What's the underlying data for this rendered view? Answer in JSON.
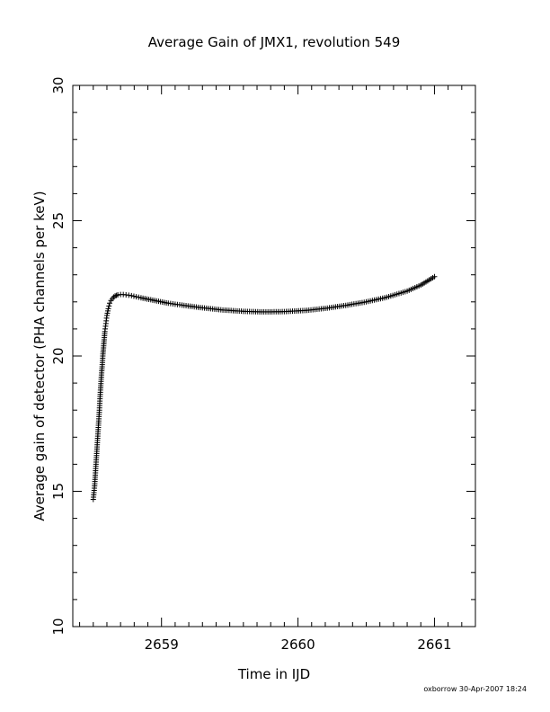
{
  "chart_data": {
    "type": "scatter",
    "title": "Average Gain of JMX1, revolution 549",
    "xlabel": "Time in IJD",
    "ylabel": "Average gain of detector (PHA channels per keV)",
    "xlim": [
      2658.35,
      2661.3
    ],
    "ylim": [
      10,
      30
    ],
    "x_ticks": [
      2659,
      2660,
      2661
    ],
    "x_tick_labels": [
      "2659",
      "2660",
      "2661"
    ],
    "y_ticks": [
      10,
      15,
      20,
      25,
      30
    ],
    "y_tick_labels": [
      "10",
      "15",
      "20",
      "25",
      "30"
    ],
    "grid": false,
    "marker": "plus",
    "series": [
      {
        "points": [
          [
            2658.5,
            14.7
          ],
          [
            2658.51,
            15.2
          ],
          [
            2658.515,
            15.6
          ],
          [
            2658.52,
            16.0
          ],
          [
            2658.525,
            16.4
          ],
          [
            2658.53,
            16.8
          ],
          [
            2658.535,
            17.2
          ],
          [
            2658.54,
            17.6
          ],
          [
            2658.545,
            18.0
          ],
          [
            2658.55,
            18.5
          ],
          [
            2658.555,
            18.9
          ],
          [
            2658.56,
            19.3
          ],
          [
            2658.565,
            19.6
          ],
          [
            2658.57,
            20.0
          ],
          [
            2658.575,
            20.3
          ],
          [
            2658.58,
            20.6
          ],
          [
            2658.585,
            20.9
          ],
          [
            2658.59,
            21.1
          ],
          [
            2658.595,
            21.3
          ],
          [
            2658.6,
            21.5
          ],
          [
            2658.61,
            21.75
          ],
          [
            2658.62,
            21.95
          ],
          [
            2658.63,
            22.05
          ],
          [
            2658.64,
            22.12
          ],
          [
            2658.65,
            22.18
          ],
          [
            2658.66,
            22.22
          ],
          [
            2658.67,
            22.24
          ],
          [
            2658.68,
            22.26
          ],
          [
            2658.7,
            22.27
          ],
          [
            2658.72,
            22.27
          ],
          [
            2658.74,
            22.26
          ],
          [
            2658.78,
            22.23
          ],
          [
            2658.85,
            22.15
          ],
          [
            2658.95,
            22.05
          ],
          [
            2659.05,
            21.95
          ],
          [
            2659.15,
            21.88
          ],
          [
            2659.3,
            21.78
          ],
          [
            2659.45,
            21.7
          ],
          [
            2659.6,
            21.65
          ],
          [
            2659.75,
            21.63
          ],
          [
            2659.9,
            21.64
          ],
          [
            2660.05,
            21.68
          ],
          [
            2660.2,
            21.76
          ],
          [
            2660.35,
            21.87
          ],
          [
            2660.5,
            22.0
          ],
          [
            2660.65,
            22.17
          ],
          [
            2660.8,
            22.4
          ],
          [
            2660.9,
            22.62
          ],
          [
            2661.0,
            22.93
          ]
        ]
      }
    ]
  },
  "footer_text": "oxborrow 30-Apr-2007 18:24"
}
